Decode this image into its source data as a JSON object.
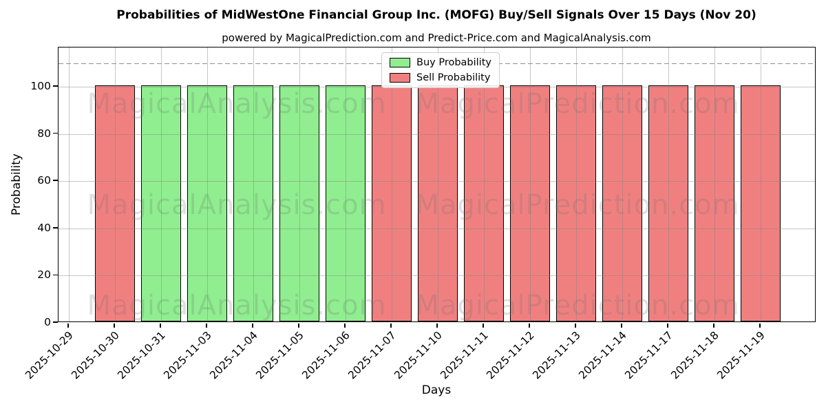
{
  "title": "Probabilities of MidWestOne Financial Group Inc. (MOFG) Buy/Sell Signals Over 15 Days (Nov 20)",
  "subtitle": "powered by MagicalPrediction.com and Predict-Price.com and MagicalAnalysis.com",
  "axes": {
    "xlabel": "Days",
    "ylabel": "Probability",
    "yticks": [
      0,
      20,
      40,
      60,
      80,
      100
    ],
    "ylim": [
      0,
      116.6
    ],
    "dashed_reference_line_y": 110,
    "grid": true
  },
  "legend": {
    "position": "top-center",
    "items": [
      {
        "label": "Buy Probability",
        "color": "#90EE90"
      },
      {
        "label": "Sell Probability",
        "color": "#F08080"
      }
    ]
  },
  "watermarks": {
    "left_text": "MagicalAnalysis.com",
    "right_text": "MagicalPrediction.com"
  },
  "colors": {
    "buy": "#90EE90",
    "sell": "#F08080",
    "bar_edge": "#000000",
    "grid": "#808080",
    "dashed_line": "#8f8f8f",
    "background": "#ffffff"
  },
  "chart_data": {
    "type": "bar",
    "title": "Probabilities of MidWestOne Financial Group Inc. (MOFG) Buy/Sell Signals Over 15 Days (Nov 20)",
    "xlabel": "Days",
    "ylabel": "Probability",
    "ylim": [
      0,
      116.6
    ],
    "dashed_reference_line": 110,
    "grid": true,
    "legend_position": "top-center",
    "categories": [
      "2025-10-29",
      "2025-10-30",
      "2025-10-31",
      "2025-11-03",
      "2025-11-04",
      "2025-11-05",
      "2025-11-06",
      "2025-11-07",
      "2025-11-10",
      "2025-11-11",
      "2025-11-12",
      "2025-11-13",
      "2025-11-14",
      "2025-11-17",
      "2025-11-18",
      "2025-11-19"
    ],
    "series": [
      {
        "name": "Buy Probability",
        "color": "#90EE90",
        "values": [
          0,
          0,
          100,
          100,
          100,
          100,
          100,
          0,
          0,
          0,
          0,
          0,
          0,
          0,
          0,
          0
        ]
      },
      {
        "name": "Sell Probability",
        "color": "#F08080",
        "values": [
          0,
          100,
          0,
          0,
          0,
          0,
          0,
          100,
          100,
          100,
          100,
          100,
          100,
          100,
          100,
          100
        ]
      }
    ]
  }
}
